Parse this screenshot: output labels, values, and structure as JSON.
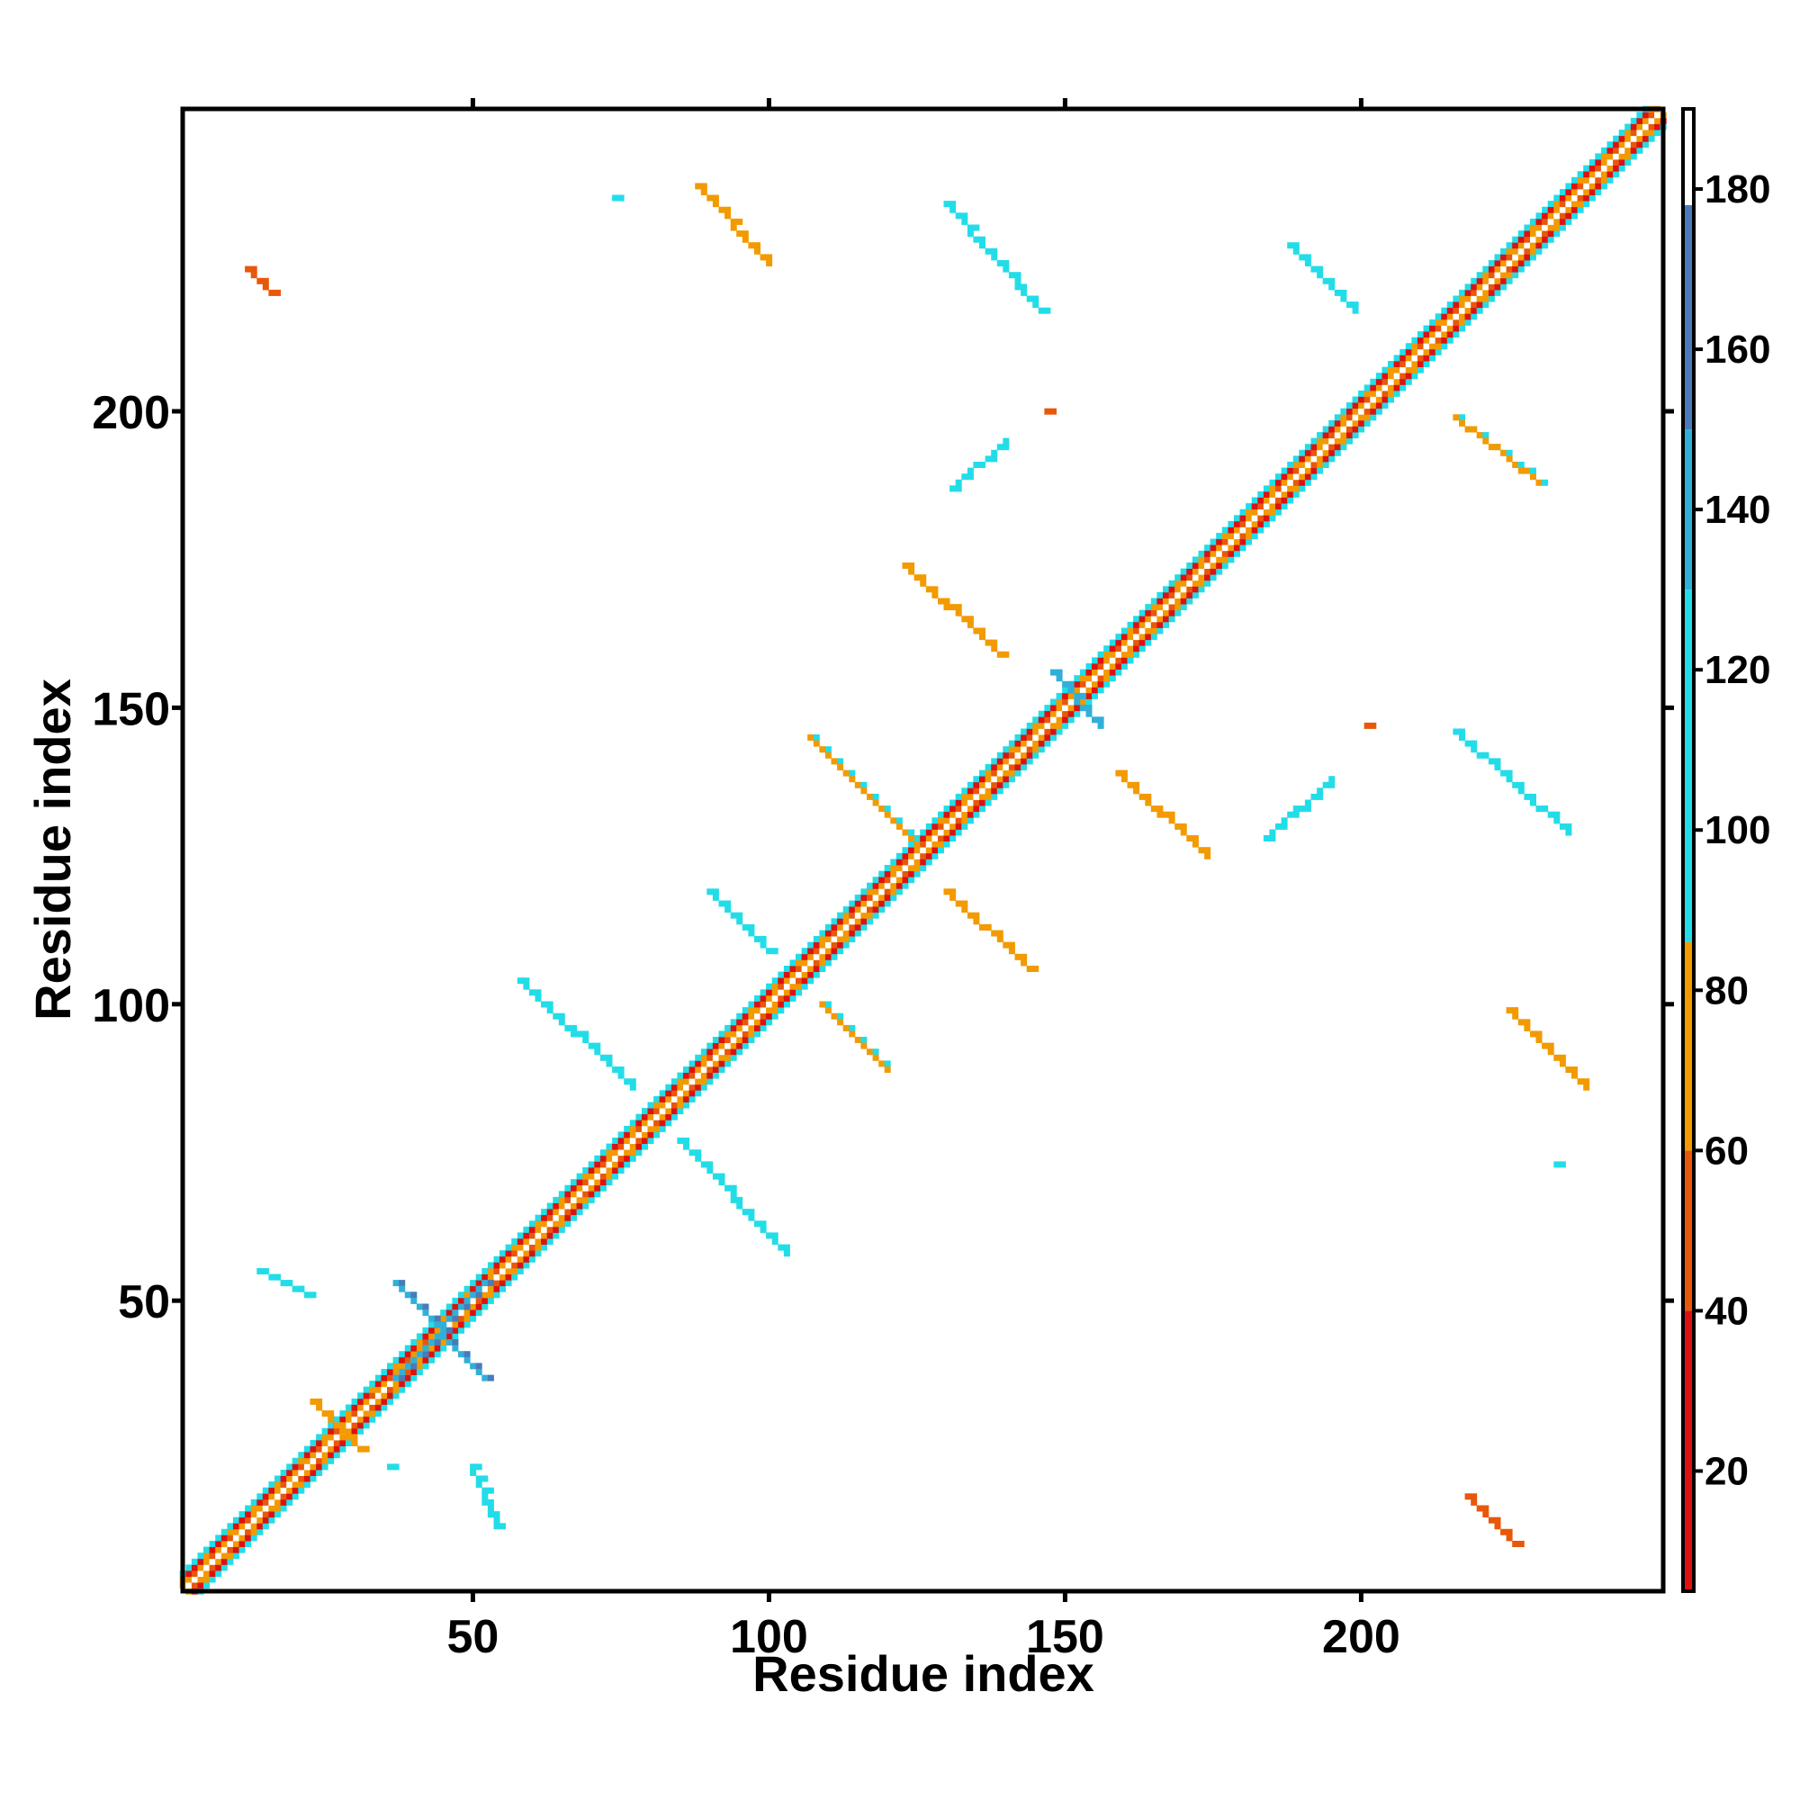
{
  "chart_data": {
    "type": "heatmap",
    "title": "",
    "xlabel": "Residue index",
    "ylabel": "Residue index",
    "xlim": [
      1,
      251
    ],
    "ylim": [
      1,
      251
    ],
    "x_ticks": [
      50,
      100,
      150,
      200
    ],
    "y_ticks": [
      50,
      100,
      150,
      200
    ],
    "colorbar": {
      "range": [
        5,
        190
      ],
      "ticks": [
        20,
        40,
        60,
        80,
        100,
        120,
        140,
        160,
        180
      ],
      "bands": [
        {
          "from": 5,
          "to": 40,
          "color": "#dd1111"
        },
        {
          "from": 40,
          "to": 60,
          "color": "#e8580a"
        },
        {
          "from": 60,
          "to": 86,
          "color": "#f29a00"
        },
        {
          "from": 86,
          "to": 130,
          "color": "#22dde8"
        },
        {
          "from": 130,
          "to": 150,
          "color": "#30b0d8"
        },
        {
          "from": 150,
          "to": 178,
          "color": "#4a7ab8"
        },
        {
          "from": 178,
          "to": 190,
          "color": "#ffffff"
        }
      ]
    },
    "diagonal_band": {
      "from": 1,
      "to": 251,
      "halfwidth": 3
    },
    "contact_segments": [
      {
        "x": [
          12,
          16
        ],
        "y": [
          224,
          220
        ],
        "value": 40
      },
      {
        "x": [
          74,
          74
        ],
        "y": [
          236,
          236
        ],
        "value": 110
      },
      {
        "x": [
          88,
          100
        ],
        "y": [
          238,
          225
        ],
        "value": 70
      },
      {
        "x": [
          130,
          146
        ],
        "y": [
          235,
          217
        ],
        "value": 110
      },
      {
        "x": [
          188,
          199
        ],
        "y": [
          228,
          217
        ],
        "value": 95
      },
      {
        "x": [
          147,
          147
        ],
        "y": [
          200,
          200
        ],
        "value": 40
      },
      {
        "x": [
          131,
          140
        ],
        "y": [
          187,
          195
        ],
        "value": 100
      },
      {
        "x": [
          123,
          139
        ],
        "y": [
          174,
          159
        ],
        "value": 70
      },
      {
        "x": [
          216,
          230
        ],
        "y": [
          199,
          188
        ],
        "value": 80
      },
      {
        "x": [
          148,
          156
        ],
        "y": [
          156,
          147
        ],
        "value": 130
      },
      {
        "x": [
          107,
          124
        ],
        "y": [
          145,
          128
        ],
        "value": 80
      },
      {
        "x": [
          159,
          174
        ],
        "y": [
          139,
          125
        ],
        "value": 70
      },
      {
        "x": [
          184,
          195
        ],
        "y": [
          128,
          138
        ],
        "value": 110
      },
      {
        "x": [
          201,
          201
        ],
        "y": [
          147,
          147
        ],
        "value": 40
      },
      {
        "x": [
          216,
          235
        ],
        "y": [
          146,
          129
        ],
        "value": 110
      },
      {
        "x": [
          90,
          100
        ],
        "y": [
          119,
          109
        ],
        "value": 95
      },
      {
        "x": [
          130,
          144
        ],
        "y": [
          119,
          106
        ],
        "value": 70
      },
      {
        "x": [
          58,
          77
        ],
        "y": [
          104,
          86
        ],
        "value": 110
      },
      {
        "x": [
          109,
          120
        ],
        "y": [
          100,
          89
        ],
        "value": 80
      },
      {
        "x": [
          225,
          238
        ],
        "y": [
          99,
          86
        ],
        "value": 70
      },
      {
        "x": [
          233,
          233
        ],
        "y": [
          73,
          73
        ],
        "value": 110
      },
      {
        "x": [
          85,
          103
        ],
        "y": [
          77,
          58
        ],
        "value": 110
      },
      {
        "x": [
          14,
          22
        ],
        "y": [
          55,
          51
        ],
        "value": 110
      },
      {
        "x": [
          37,
          52
        ],
        "y": [
          53,
          37
        ],
        "value": 140
      },
      {
        "x": [
          37,
          52
        ],
        "y": [
          37,
          53
        ],
        "value": 140
      },
      {
        "x": [
          23,
          31
        ],
        "y": [
          33,
          25
        ],
        "value": 70
      },
      {
        "x": [
          36,
          36
        ],
        "y": [
          22,
          22
        ],
        "value": 110
      },
      {
        "x": [
          50,
          54
        ],
        "y": [
          22,
          12
        ],
        "value": 110
      },
      {
        "x": [
          218,
          226
        ],
        "y": [
          17,
          9
        ],
        "value": 40
      }
    ]
  }
}
